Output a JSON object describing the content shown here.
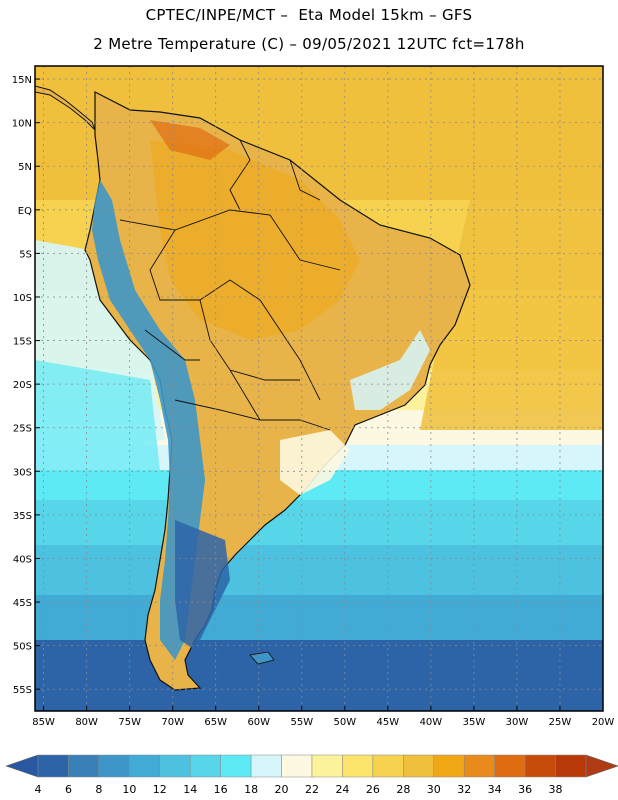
{
  "title": {
    "line1": "CPTEC/INPE/MCT –  Eta Model 15km – GFS",
    "line2": "2 Metre Temperature (C) – 09/05/2021 12UTC fct=178h"
  },
  "map": {
    "lat_labels": [
      "15N",
      "10N",
      "5N",
      "EQ",
      "5S",
      "10S",
      "15S",
      "20S",
      "25S",
      "30S",
      "35S",
      "40S",
      "45S",
      "50S",
      "55S"
    ],
    "lat_values": [
      15,
      10,
      5,
      0,
      -5,
      -10,
      -15,
      -20,
      -25,
      -30,
      -35,
      -40,
      -45,
      -50,
      -55
    ],
    "lon_labels": [
      "85W",
      "80W",
      "75W",
      "70W",
      "65W",
      "60W",
      "55W",
      "50W",
      "45W",
      "40W",
      "35W",
      "30W",
      "25W",
      "20W"
    ],
    "lon_values": [
      -85,
      -80,
      -75,
      -70,
      -65,
      -60,
      -55,
      -50,
      -45,
      -40,
      -35,
      -30,
      -25,
      -20
    ],
    "lat_range": [
      -57.5,
      16.5
    ],
    "lon_range": [
      -86,
      -20
    ]
  },
  "colorbar": {
    "labels": [
      "4",
      "6",
      "8",
      "10",
      "12",
      "14",
      "16",
      "18",
      "20",
      "22",
      "24",
      "26",
      "28",
      "30",
      "32",
      "34",
      "36",
      "38"
    ],
    "colors": [
      "#2d64a8",
      "#3a80b8",
      "#3e96c8",
      "#41abd6",
      "#4cc2e0",
      "#56d6e8",
      "#5eeaf4",
      "#d6f6fb",
      "#fdf8e1",
      "#fdf29c",
      "#fbe46b",
      "#f6d24f",
      "#f0c03c",
      "#f0a814",
      "#e88a1c",
      "#e06c12",
      "#c84a0a",
      "#b83808"
    ],
    "under_color": "#2a58a0",
    "over_color": "#b03a14"
  },
  "colors": {
    "ocean_warm": "#f4cf52",
    "land_warm": "#e8b44a",
    "andes": "#3e96c8",
    "coastline": "#111111",
    "grid": "#8a8a8a"
  }
}
